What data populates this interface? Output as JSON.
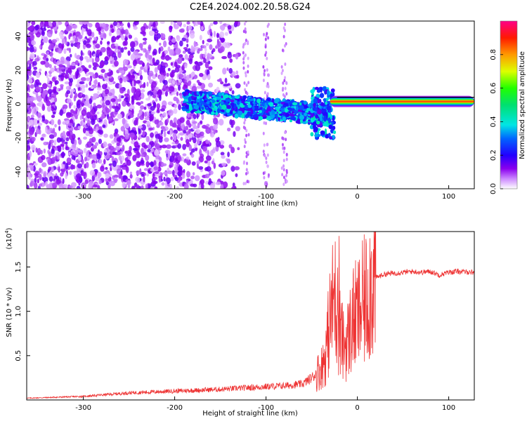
{
  "title": "C2E4.2024.002.20.58.G24",
  "chart_data": [
    {
      "type": "heatmap",
      "xlabel": "Height of straight line (km)",
      "ylabel": "Frequency (Hz)",
      "xlim": [
        -362,
        128
      ],
      "ylim": [
        -50,
        49
      ],
      "xticks": [
        -300,
        -200,
        -100,
        0,
        100
      ],
      "yticks": [
        -40,
        -20,
        0,
        20,
        40
      ],
      "colorbar": {
        "label": "Normalized spectral amplitude",
        "range": [
          0,
          1
        ],
        "ticks": [
          0.0,
          0.2,
          0.4,
          0.6,
          0.8
        ],
        "colormap": "rainbow (white-violet-blue-cyan-green-yellow-red-pink)"
      },
      "features": {
        "noise_region_x": [
          -362,
          -190
        ],
        "signal_band_x": [
          -190,
          -40
        ],
        "signal_band_freq": [
          -12,
          6
        ],
        "carrier_x": [
          -30,
          128
        ],
        "carrier_freq": 1.5,
        "carrier_amplitude": 0.85
      }
    },
    {
      "type": "line",
      "xlabel": "Height of straight line (km)",
      "ylabel": "SNR (10 * v/v)",
      "y_multiplier": "(x10",
      "y_multiplier_exp": "4",
      "y_multiplier_close": ")",
      "xlim": [
        -362,
        128
      ],
      "ylim": [
        0,
        1.9
      ],
      "xticks": [
        -300,
        -200,
        -100,
        0,
        100
      ],
      "yticks": [
        0.5,
        1.0,
        1.5
      ],
      "color": "#ee3333",
      "series": [
        {
          "x": [
            -362,
            -300,
            -250,
            -200,
            -150,
            -100,
            -80,
            -60,
            -50,
            -40,
            -35,
            -30,
            -25,
            -20,
            -15,
            -10,
            -5,
            0,
            5,
            10,
            15,
            20,
            30,
            40,
            50,
            60,
            70,
            80,
            90,
            100,
            110,
            128
          ],
          "y": [
            0.02,
            0.04,
            0.08,
            0.1,
            0.12,
            0.15,
            0.16,
            0.18,
            0.25,
            0.35,
            0.5,
            0.9,
            1.2,
            0.8,
            0.6,
            0.7,
            0.9,
            0.95,
            1.05,
            1.15,
            1.35,
            1.38,
            1.42,
            1.43,
            1.44,
            1.45,
            1.44,
            1.45,
            1.41,
            1.44,
            1.45,
            1.44
          ]
        }
      ]
    }
  ]
}
